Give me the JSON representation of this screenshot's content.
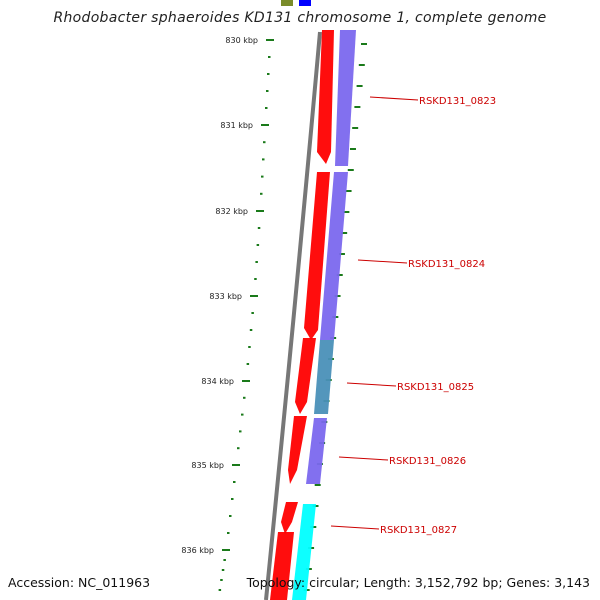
{
  "title": "Rhodobacter sphaeroides KD131 chromosome 1, complete genome",
  "footer": {
    "accession": "Accession: NC_011963",
    "topology": "Topology: circular; Length: 3,152,792 bp; Genes: 3,143"
  },
  "scale_labels": [
    "830 kbp",
    "831 kbp",
    "832 kbp",
    "833 kbp",
    "834 kbp",
    "835 kbp",
    "836 kbp"
  ],
  "gene_labels": [
    "RSKD131_0823",
    "RSKD131_0824",
    "RSKD131_0825",
    "RSKD131_0826",
    "RSKD131_0827"
  ],
  "colors": {
    "scale_tick": "#1a7a1a",
    "backbone": "#777777",
    "forward_gene": "#ff0000",
    "reverse_gene": "#7b68ee",
    "teal_gene": "#4a90b8",
    "cyan_gene": "#00ffff",
    "label": "#cc0000",
    "olive_feature": "#7a8c2a",
    "blue_feature": "#0000ff"
  }
}
